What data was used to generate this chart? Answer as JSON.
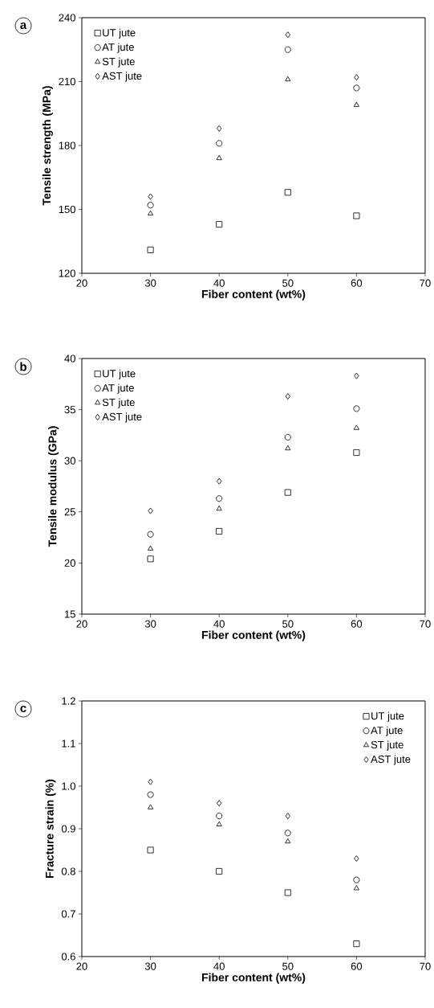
{
  "chart_data": [
    {
      "type": "scatter",
      "xlabel": "Fiber content (wt%)",
      "ylabel": "Tensile strength (MPa)",
      "annotations": [
        "a"
      ],
      "x": [
        30,
        40,
        50,
        60
      ],
      "xlim": [
        20,
        70
      ],
      "xticks": [
        20,
        30,
        40,
        50,
        60,
        70
      ],
      "ylim": [
        120,
        240
      ],
      "yticks": [
        120,
        150,
        180,
        210,
        240
      ],
      "legend": "top left",
      "grid": false,
      "series": [
        {
          "name": "UT jute",
          "color": "#000000",
          "marker": "square",
          "values": [
            131,
            143,
            158,
            147
          ]
        },
        {
          "name": "AT jute",
          "color": "#000000",
          "marker": "circle",
          "values": [
            152,
            181,
            225,
            207
          ]
        },
        {
          "name": "ST jute",
          "color": "#000000",
          "marker": "triangle",
          "values": [
            148,
            174,
            211,
            199
          ]
        },
        {
          "name": "AST jute",
          "color": "#000000",
          "marker": "diamond",
          "values": [
            156,
            188,
            232,
            212
          ]
        }
      ]
    },
    {
      "type": "scatter",
      "xlabel": "Fiber content (wt%)",
      "ylabel": "Tensile modulus (GPa)",
      "annotations": [
        "b"
      ],
      "x": [
        30,
        40,
        50,
        60
      ],
      "xlim": [
        20,
        70
      ],
      "xticks": [
        20,
        30,
        40,
        50,
        60,
        70
      ],
      "ylim": [
        15,
        40
      ],
      "yticks": [
        15,
        20,
        25,
        30,
        35,
        40
      ],
      "legend": "top left",
      "grid": false,
      "series": [
        {
          "name": "UT jute",
          "color": "#000000",
          "marker": "square",
          "values": [
            20.4,
            23.1,
            26.9,
            30.8
          ]
        },
        {
          "name": "AT jute",
          "color": "#000000",
          "marker": "circle",
          "values": [
            22.8,
            26.3,
            32.3,
            35.1
          ]
        },
        {
          "name": "ST jute",
          "color": "#000000",
          "marker": "triangle",
          "values": [
            21.4,
            25.3,
            31.2,
            33.2
          ]
        },
        {
          "name": "AST jute",
          "color": "#000000",
          "marker": "diamond",
          "values": [
            25.1,
            28.0,
            36.3,
            38.3
          ]
        }
      ]
    },
    {
      "type": "scatter",
      "xlabel": "Fiber content (wt%)",
      "ylabel": "Fracture strain (%)",
      "annotations": [
        "c"
      ],
      "x": [
        30,
        40,
        50,
        60
      ],
      "xlim": [
        20,
        70
      ],
      "xticks": [
        20,
        30,
        40,
        50,
        60,
        70
      ],
      "ylim": [
        0.6,
        1.2
      ],
      "yticks": [
        {
          "value": 0.6,
          "label": "0.6"
        },
        {
          "value": 0.7,
          "label": "0.7"
        },
        {
          "value": 0.8,
          "label": "0.8"
        },
        {
          "value": 0.9,
          "label": "0.9"
        },
        {
          "value": 1.0,
          "label": "1.0"
        },
        {
          "value": 1.1,
          "label": "1.1"
        },
        {
          "value": 1.2,
          "label": "1.2"
        }
      ],
      "legend": "top right",
      "grid": false,
      "series": [
        {
          "name": "UT jute",
          "color": "#000000",
          "marker": "square",
          "values": [
            0.85,
            0.8,
            0.75,
            0.63
          ]
        },
        {
          "name": "AT jute",
          "color": "#000000",
          "marker": "circle",
          "values": [
            0.98,
            0.93,
            0.89,
            0.78
          ]
        },
        {
          "name": "ST jute",
          "color": "#000000",
          "marker": "triangle",
          "values": [
            0.95,
            0.91,
            0.87,
            0.76
          ]
        },
        {
          "name": "AST jute",
          "color": "#000000",
          "marker": "diamond",
          "values": [
            1.01,
            0.96,
            0.93,
            0.83
          ]
        }
      ]
    }
  ]
}
